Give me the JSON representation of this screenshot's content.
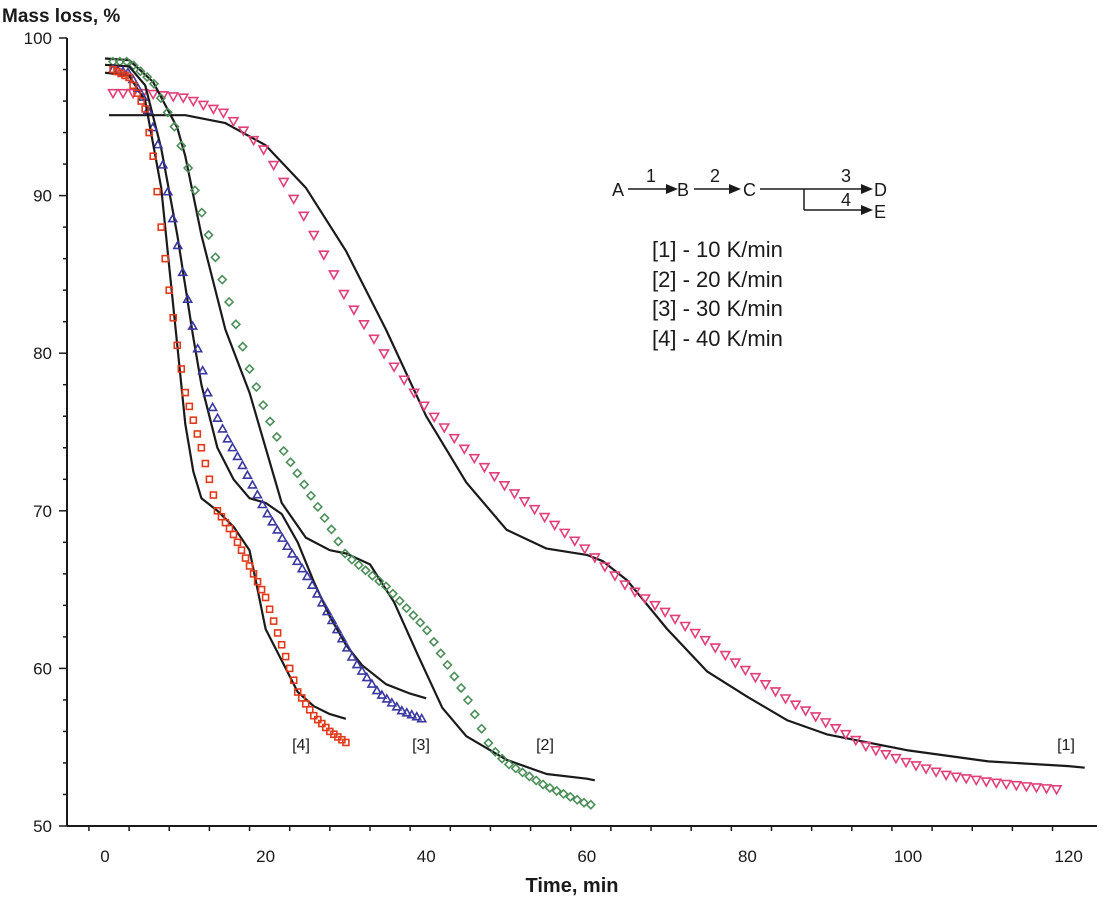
{
  "chart_data": {
    "type": "line",
    "xlabel": "Time, min",
    "ylabel": "Mass loss, %",
    "xlim": [
      0,
      122
    ],
    "ylim": [
      50,
      100
    ],
    "xticks": [
      "0",
      "20",
      "40",
      "60",
      "80",
      "100",
      "120"
    ],
    "yticks": [
      "50",
      "60",
      "70",
      "80",
      "90",
      "100"
    ],
    "grid": false,
    "legend": {
      "placement": "upper-right",
      "entries": [
        "[1] - 10 K/min",
        "[2] - 20 K/min",
        "[3] - 30 K/min",
        "[4] - 40 K/min"
      ]
    },
    "scheme": {
      "nodes": [
        "A",
        "B",
        "C",
        "D",
        "E"
      ],
      "steps": [
        "1",
        "2",
        "3",
        "4"
      ]
    },
    "series": [
      {
        "name": "[1]",
        "marker": "triangle-down",
        "color": "#e0407a",
        "measured": [
          [
            1,
            96.5
          ],
          [
            5,
            96.5
          ],
          [
            10,
            96.2
          ],
          [
            15,
            95.2
          ],
          [
            20,
            92.8
          ],
          [
            25,
            88.5
          ],
          [
            30,
            83.5
          ],
          [
            35,
            79.8
          ],
          [
            40,
            76.5
          ],
          [
            45,
            73.8
          ],
          [
            50,
            71.5
          ],
          [
            55,
            69.5
          ],
          [
            60,
            67.5
          ],
          [
            65,
            65.2
          ],
          [
            70,
            63.5
          ],
          [
            75,
            61.7
          ],
          [
            80,
            59.8
          ],
          [
            85,
            58
          ],
          [
            90,
            56.5
          ],
          [
            95,
            55
          ],
          [
            100,
            54
          ],
          [
            105,
            53.2
          ],
          [
            110,
            52.8
          ],
          [
            115,
            52.5
          ],
          [
            119,
            52.3
          ]
        ],
        "model": [
          [
            0.5,
            95.1
          ],
          [
            4,
            95.1
          ],
          [
            10,
            95.1
          ],
          [
            15,
            94.6
          ],
          [
            20,
            93.2
          ],
          [
            25,
            90.5
          ],
          [
            30,
            86.5
          ],
          [
            35,
            81.5
          ],
          [
            40,
            76
          ],
          [
            45,
            71.8
          ],
          [
            50,
            68.8
          ],
          [
            55,
            67.6
          ],
          [
            60,
            67.2
          ],
          [
            62,
            66.8
          ],
          [
            65,
            65.6
          ],
          [
            70,
            62.5
          ],
          [
            75,
            59.8
          ],
          [
            80,
            58.2
          ],
          [
            85,
            56.7
          ],
          [
            90,
            55.8
          ],
          [
            100,
            54.8
          ],
          [
            110,
            54.1
          ],
          [
            120,
            53.8
          ],
          [
            122,
            53.7
          ]
        ]
      },
      {
        "name": "[2]",
        "marker": "diamond",
        "color": "#4e8e5a",
        "measured": [
          [
            1,
            98.5
          ],
          [
            3,
            98.5
          ],
          [
            6,
            97.2
          ],
          [
            9,
            94
          ],
          [
            12,
            89
          ],
          [
            15,
            84
          ],
          [
            18,
            79
          ],
          [
            20,
            76.3
          ],
          [
            22,
            74
          ],
          [
            25,
            71.5
          ],
          [
            28,
            69
          ],
          [
            30,
            67.2
          ],
          [
            35,
            65.2
          ],
          [
            40,
            62.5
          ],
          [
            45,
            58.2
          ],
          [
            48,
            55
          ],
          [
            50,
            54
          ],
          [
            55,
            52.5
          ],
          [
            60,
            51.4
          ],
          [
            61,
            51.3
          ]
        ],
        "model": [
          [
            0,
            98.7
          ],
          [
            3,
            98.6
          ],
          [
            6,
            97.2
          ],
          [
            9,
            94.3
          ],
          [
            10,
            92.5
          ],
          [
            12,
            87.5
          ],
          [
            15,
            81.5
          ],
          [
            18,
            77.5
          ],
          [
            20,
            74
          ],
          [
            22,
            70.5
          ],
          [
            25,
            68.3
          ],
          [
            28,
            67.5
          ],
          [
            30,
            67.3
          ],
          [
            33,
            66.6
          ],
          [
            36,
            64.2
          ],
          [
            39,
            60.8
          ],
          [
            42,
            57.5
          ],
          [
            45,
            55.7
          ],
          [
            50,
            54.2
          ],
          [
            55,
            53.3
          ],
          [
            60,
            53
          ],
          [
            61,
            52.9
          ]
        ]
      },
      {
        "name": "[3]",
        "marker": "triangle-up",
        "color": "#3838a0",
        "measured": [
          [
            1,
            98
          ],
          [
            3,
            97.8
          ],
          [
            5,
            96
          ],
          [
            7,
            92.5
          ],
          [
            9,
            87
          ],
          [
            11,
            81.5
          ],
          [
            13,
            77
          ],
          [
            15,
            74.8
          ],
          [
            17,
            73
          ],
          [
            20,
            70
          ],
          [
            23,
            67.5
          ],
          [
            25,
            66
          ],
          [
            28,
            63.3
          ],
          [
            31,
            60.5
          ],
          [
            34,
            58.5
          ],
          [
            37,
            57.3
          ],
          [
            40,
            56.7
          ]
        ],
        "model": [
          [
            0,
            98.3
          ],
          [
            3,
            98.2
          ],
          [
            5,
            97
          ],
          [
            7,
            93
          ],
          [
            9,
            87.5
          ],
          [
            11,
            81
          ],
          [
            12,
            78
          ],
          [
            14,
            74
          ],
          [
            16,
            72
          ],
          [
            18,
            70.8
          ],
          [
            20,
            70.5
          ],
          [
            22,
            69.8
          ],
          [
            24,
            68
          ],
          [
            26,
            65.5
          ],
          [
            28,
            63.3
          ],
          [
            30,
            61.5
          ],
          [
            32,
            60.2
          ],
          [
            35,
            59
          ],
          [
            38,
            58.4
          ],
          [
            40,
            58.1
          ]
        ]
      },
      {
        "name": "[4]",
        "marker": "square",
        "color": "#e03a1c",
        "measured": [
          [
            1,
            98
          ],
          [
            3,
            97.5
          ],
          [
            5,
            95.5
          ],
          [
            6,
            92.5
          ],
          [
            7,
            88
          ],
          [
            8,
            84
          ],
          [
            9,
            80.5
          ],
          [
            10,
            77.5
          ],
          [
            12,
            74
          ],
          [
            14,
            70
          ],
          [
            16,
            68.5
          ],
          [
            18,
            66.5
          ],
          [
            20,
            64.5
          ],
          [
            22,
            61.5
          ],
          [
            24,
            58.5
          ],
          [
            26,
            57
          ],
          [
            28,
            56
          ],
          [
            30,
            55.3
          ]
        ],
        "model": [
          [
            0,
            97.8
          ],
          [
            3,
            97.6
          ],
          [
            5,
            96
          ],
          [
            7,
            90.5
          ],
          [
            8,
            85.5
          ],
          [
            9,
            80.5
          ],
          [
            10,
            75.5
          ],
          [
            11,
            72.5
          ],
          [
            12,
            70.8
          ],
          [
            14,
            70
          ],
          [
            16,
            69
          ],
          [
            18,
            67.5
          ],
          [
            19,
            65
          ],
          [
            20,
            62.5
          ],
          [
            22,
            60.5
          ],
          [
            24,
            58.5
          ],
          [
            26,
            57.6
          ],
          [
            28,
            57.1
          ],
          [
            30,
            56.8
          ]
        ]
      }
    ]
  }
}
